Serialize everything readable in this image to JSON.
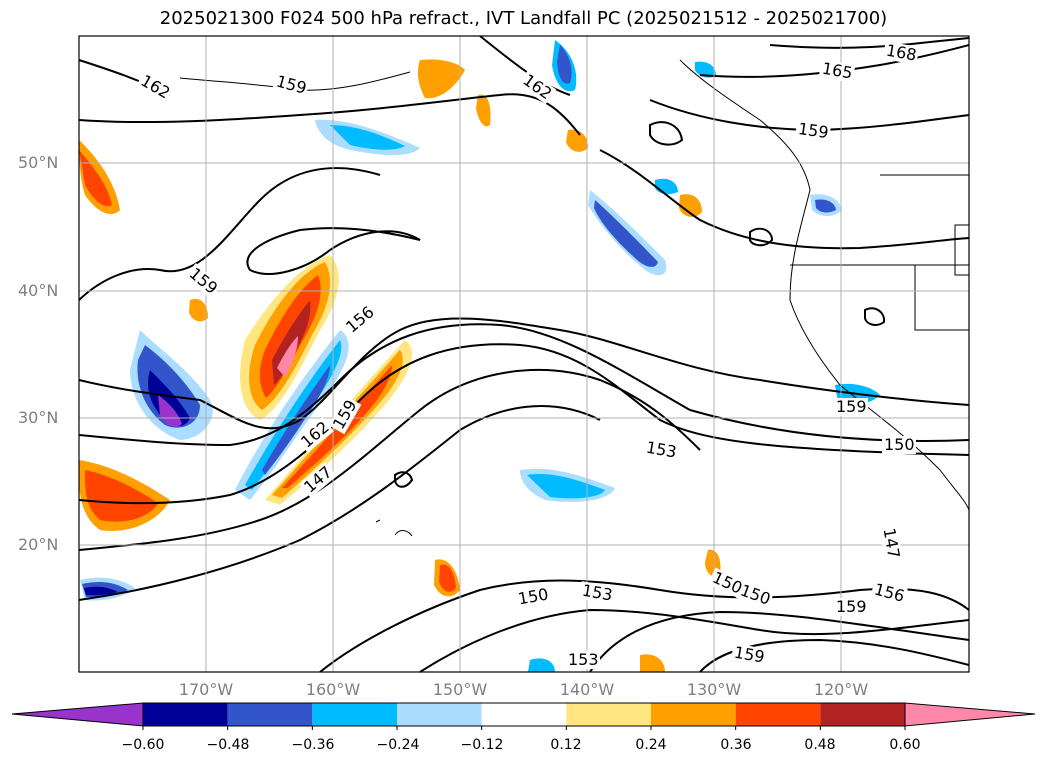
{
  "title": "2025021300 F024 500 hPa refract., IVT Landfall PC (2025021512 - 2025021700)",
  "lat_labels": [
    "50°N",
    "40°N",
    "30°N",
    "20°N"
  ],
  "lon_labels": [
    "170°W",
    "160°W",
    "150°W",
    "140°W",
    "130°W",
    "120°W"
  ],
  "contour_labels": [
    "162",
    "159",
    "162",
    "168",
    "165",
    "159",
    "159",
    "156",
    "162",
    "159",
    "147",
    "153",
    "150",
    "159",
    "150",
    "147",
    "156",
    "159",
    "150",
    "153",
    "150",
    "153",
    "159"
  ],
  "colorbar": {
    "ticks": [
      "−0.60",
      "−0.48",
      "−0.36",
      "−0.24",
      "−0.12",
      "0.12",
      "0.24",
      "0.36",
      "0.48",
      "0.60"
    ],
    "colors": [
      "#9933cc",
      "#000099",
      "#3355cc",
      "#00bbff",
      "#aaddff",
      "#ffffff",
      "#ffe680",
      "#ffa000",
      "#ff4400",
      "#b22222",
      "#ff88aa"
    ]
  }
}
